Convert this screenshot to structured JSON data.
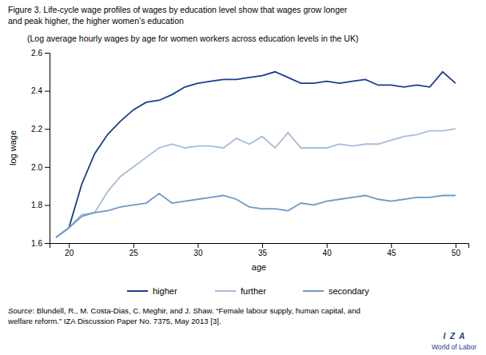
{
  "chart_data": {
    "type": "line",
    "title": "Figure 3. Life-cycle wage profiles of wages by education level show that wages grow longer\nand peak higher, the higher women’s education",
    "subtitle": "(Log average hourly wages by age for women workers across education levels in the UK)",
    "x_label": "age",
    "y_label": "log wage",
    "x": [
      19,
      20,
      21,
      22,
      23,
      24,
      25,
      26,
      27,
      28,
      29,
      30,
      31,
      32,
      33,
      34,
      35,
      36,
      37,
      38,
      39,
      40,
      41,
      42,
      43,
      44,
      45,
      46,
      47,
      48,
      49,
      50
    ],
    "series": [
      {
        "name": "higher",
        "color": "#1a3e8c",
        "values": [
          1.63,
          1.68,
          1.91,
          2.07,
          2.17,
          2.24,
          2.3,
          2.34,
          2.35,
          2.38,
          2.42,
          2.44,
          2.45,
          2.46,
          2.46,
          2.47,
          2.48,
          2.5,
          2.47,
          2.44,
          2.44,
          2.45,
          2.44,
          2.45,
          2.46,
          2.43,
          2.43,
          2.42,
          2.43,
          2.42,
          2.5,
          2.44
        ]
      },
      {
        "name": "further",
        "color": "#a8bcd8",
        "values": [
          1.63,
          1.68,
          1.75,
          1.76,
          1.87,
          1.95,
          2.0,
          2.05,
          2.1,
          2.12,
          2.1,
          2.11,
          2.11,
          2.1,
          2.15,
          2.12,
          2.16,
          2.1,
          2.18,
          2.1,
          2.1,
          2.1,
          2.12,
          2.11,
          2.12,
          2.12,
          2.14,
          2.16,
          2.17,
          2.19,
          2.19,
          2.2
        ]
      },
      {
        "name": "secondary",
        "color": "#6b9bc8",
        "values": [
          1.63,
          1.68,
          1.74,
          1.76,
          1.77,
          1.79,
          1.8,
          1.81,
          1.86,
          1.81,
          1.82,
          1.83,
          1.84,
          1.85,
          1.83,
          1.79,
          1.78,
          1.78,
          1.77,
          1.81,
          1.8,
          1.82,
          1.83,
          1.84,
          1.85,
          1.83,
          1.82,
          1.83,
          1.84,
          1.84,
          1.85,
          1.85
        ]
      }
    ],
    "xlim": [
      18.5,
      51
    ],
    "xticks": [
      20,
      25,
      30,
      35,
      40,
      45,
      50
    ],
    "ylim": [
      1.6,
      2.6
    ],
    "yticks": [
      1.6,
      1.8,
      {
        "value": 2,
        "label": "2.0"
      },
      2.2,
      2.4,
      2.6
    ],
    "grid": false,
    "legend": "bottom",
    "annotations": [
      "Source",
      ": Blundell, R., M. Costa-Dias, C. Meghir, and J. Shaw. “Female labour supply, human capital, and\nwelfare reform.” IZA Discussion Paper No. 7375, May 2013 [3].",
      "I  Z  A",
      "World of Labor"
    ]
  }
}
